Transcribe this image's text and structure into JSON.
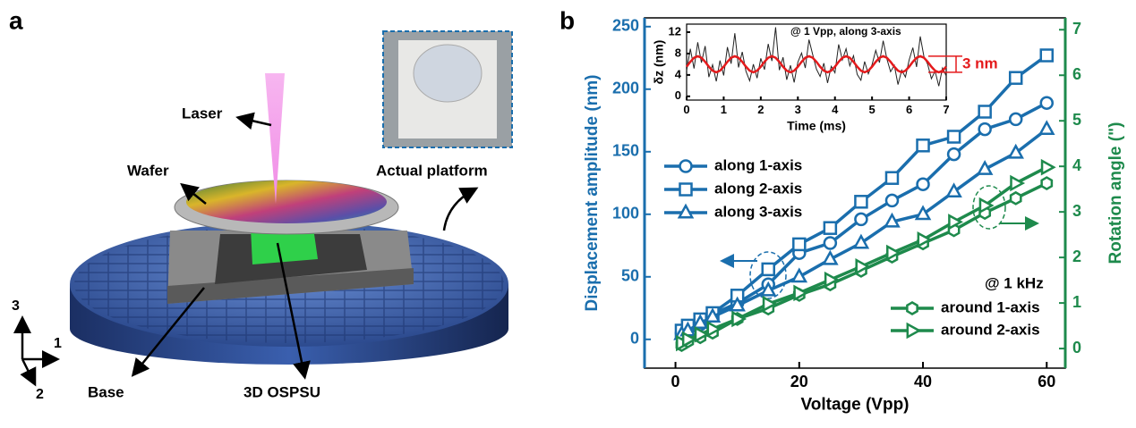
{
  "panel_a": {
    "label": "a",
    "callouts": [
      "Laser",
      "Wafer",
      "Actual platform",
      "Base",
      "3D OSPSU"
    ],
    "axes": [
      "3",
      "1",
      "2"
    ]
  },
  "chart_data": [
    {
      "type": "line",
      "panel_label": "b",
      "xlabel": "Voltage (Vpp)",
      "ylabel": "Displacement amplitude (nm)",
      "y2label": "Rotation angle (\")",
      "annotations": [
        "@ 1 kHz"
      ],
      "x": [
        1,
        2,
        4,
        6,
        10,
        15,
        20,
        25,
        30,
        35,
        40,
        45,
        50,
        55,
        60
      ],
      "series": [
        {
          "name": "along 1-axis",
          "color": "#1a6ead",
          "marker": "circle",
          "values": [
            5,
            9,
            12,
            20,
            29,
            44,
            69,
            77,
            96,
            111,
            124,
            148,
            168,
            176,
            189
          ]
        },
        {
          "name": "along 2-axis",
          "color": "#1a6ead",
          "marker": "square",
          "values": [
            7,
            11,
            16,
            21,
            35,
            56,
            76,
            89,
            110,
            129,
            155,
            162,
            182,
            209,
            227
          ]
        },
        {
          "name": "along 3-axis",
          "color": "#1a6ead",
          "marker": "triangle",
          "values": [
            4,
            7,
            13,
            18,
            27,
            39,
            50,
            64,
            77,
            94,
            100,
            118,
            136,
            149,
            168
          ]
        },
        {
          "name": "around 1-axis",
          "color": "#1e8a4c",
          "marker": "hexagon",
          "axis": "y2",
          "values": [
            0.08,
            0.16,
            0.25,
            0.35,
            0.65,
            0.88,
            1.18,
            1.41,
            1.71,
            2.02,
            2.31,
            2.6,
            2.98,
            3.3,
            3.63
          ]
        },
        {
          "name": "around 2-axis",
          "color": "#1e8a4c",
          "marker": "triangle-right",
          "axis": "y2",
          "values": [
            0.12,
            0.2,
            0.31,
            0.43,
            0.65,
            0.98,
            1.22,
            1.51,
            1.8,
            2.1,
            2.39,
            2.78,
            3.14,
            3.63,
            3.98
          ]
        }
      ],
      "xlim": [
        -5,
        63
      ],
      "xticks": [
        0,
        20,
        40,
        60
      ],
      "ylim": [
        -23,
        257
      ],
      "yticks": [
        0,
        50,
        100,
        150,
        200,
        250
      ],
      "y2lim": [
        -0.43,
        7.26
      ],
      "y2ticks": [
        0,
        1,
        2,
        3,
        4,
        5,
        6,
        7
      ]
    },
    {
      "type": "line",
      "xlabel": "Time (ms)",
      "ylabel": "δz (nm)",
      "annotations": [
        "@ 1 Vpp, along 3-axis",
        "3 nm"
      ],
      "x": [
        0,
        0.1,
        0.2,
        0.3,
        0.4,
        0.5,
        0.6,
        0.7,
        0.8,
        0.9,
        1,
        1.1,
        1.2,
        1.3,
        1.4,
        1.5,
        1.6,
        1.7,
        1.8,
        1.9,
        2,
        2.1,
        2.2,
        2.3,
        2.4,
        2.5,
        2.6,
        2.7,
        2.8,
        2.9,
        3,
        3.1,
        3.2,
        3.3,
        3.4,
        3.5,
        3.6,
        3.7,
        3.8,
        3.9,
        4,
        4.1,
        4.2,
        4.3,
        4.4,
        4.5,
        4.6,
        4.7,
        4.8,
        4.9,
        5,
        5.1,
        5.2,
        5.3,
        5.4,
        5.5,
        5.6,
        5.7,
        5.8,
        5.9,
        6,
        6.1,
        6.2,
        6.3,
        6.4,
        6.5,
        6.6,
        6.7,
        6.8,
        6.9,
        7
      ],
      "series": [
        {
          "color": "#222222",
          "values": [
            4.8,
            8.9,
            5.2,
            10.1,
            6.3,
            9.4,
            3.6,
            5.9,
            2.8,
            6.7,
            3.9,
            9.2,
            6.1,
            11.8,
            5.4,
            8.3,
            4.7,
            2.9,
            6.0,
            3.4,
            7.1,
            5.0,
            9.8,
            6.6,
            12.9,
            4.9,
            7.3,
            3.1,
            5.8,
            2.6,
            6.4,
            8.1,
            5.3,
            10.6,
            7.8,
            5.1,
            3.7,
            6.2,
            2.5,
            5.6,
            4.4,
            9.7,
            6.8,
            8.9,
            5.7,
            7.6,
            4.1,
            3.0,
            6.5,
            4.2,
            5.9,
            8.6,
            6.3,
            10.4,
            7.0,
            4.6,
            5.8,
            2.2,
            4.9,
            3.6,
            6.8,
            9.1,
            5.5,
            11.2,
            7.4,
            6.0,
            3.3,
            4.7,
            1.9,
            5.3,
            3.8
          ]
        },
        {
          "color": "#e41a1c",
          "values": [
            5.54,
            6.46,
            7.21,
            7.5,
            7.21,
            6.46,
            5.54,
            4.79,
            4.5,
            4.79,
            5.54,
            6.46,
            7.21,
            7.5,
            7.21,
            6.46,
            5.54,
            4.79,
            4.5,
            4.79,
            5.54,
            6.46,
            7.21,
            7.5,
            7.21,
            6.46,
            5.54,
            4.79,
            4.5,
            4.79,
            5.54,
            6.46,
            7.21,
            7.5,
            7.21,
            6.46,
            5.54,
            4.79,
            4.5,
            4.79,
            5.54,
            6.46,
            7.21,
            7.5,
            7.21,
            6.46,
            5.54,
            4.79,
            4.5,
            4.79,
            5.54,
            6.46,
            7.21,
            7.5,
            7.21,
            6.46,
            5.54,
            4.79,
            4.5,
            4.79,
            5.54,
            6.46,
            7.21,
            7.5,
            7.21,
            6.46,
            5.54,
            4.79,
            4.5,
            4.79,
            5.54
          ]
        }
      ],
      "xlim": [
        0,
        7
      ],
      "xticks": [
        0,
        1,
        2,
        3,
        4,
        5,
        6,
        7
      ],
      "ylim": [
        -0.7,
        13.5
      ],
      "yticks": [
        0,
        4,
        8,
        12
      ]
    }
  ]
}
